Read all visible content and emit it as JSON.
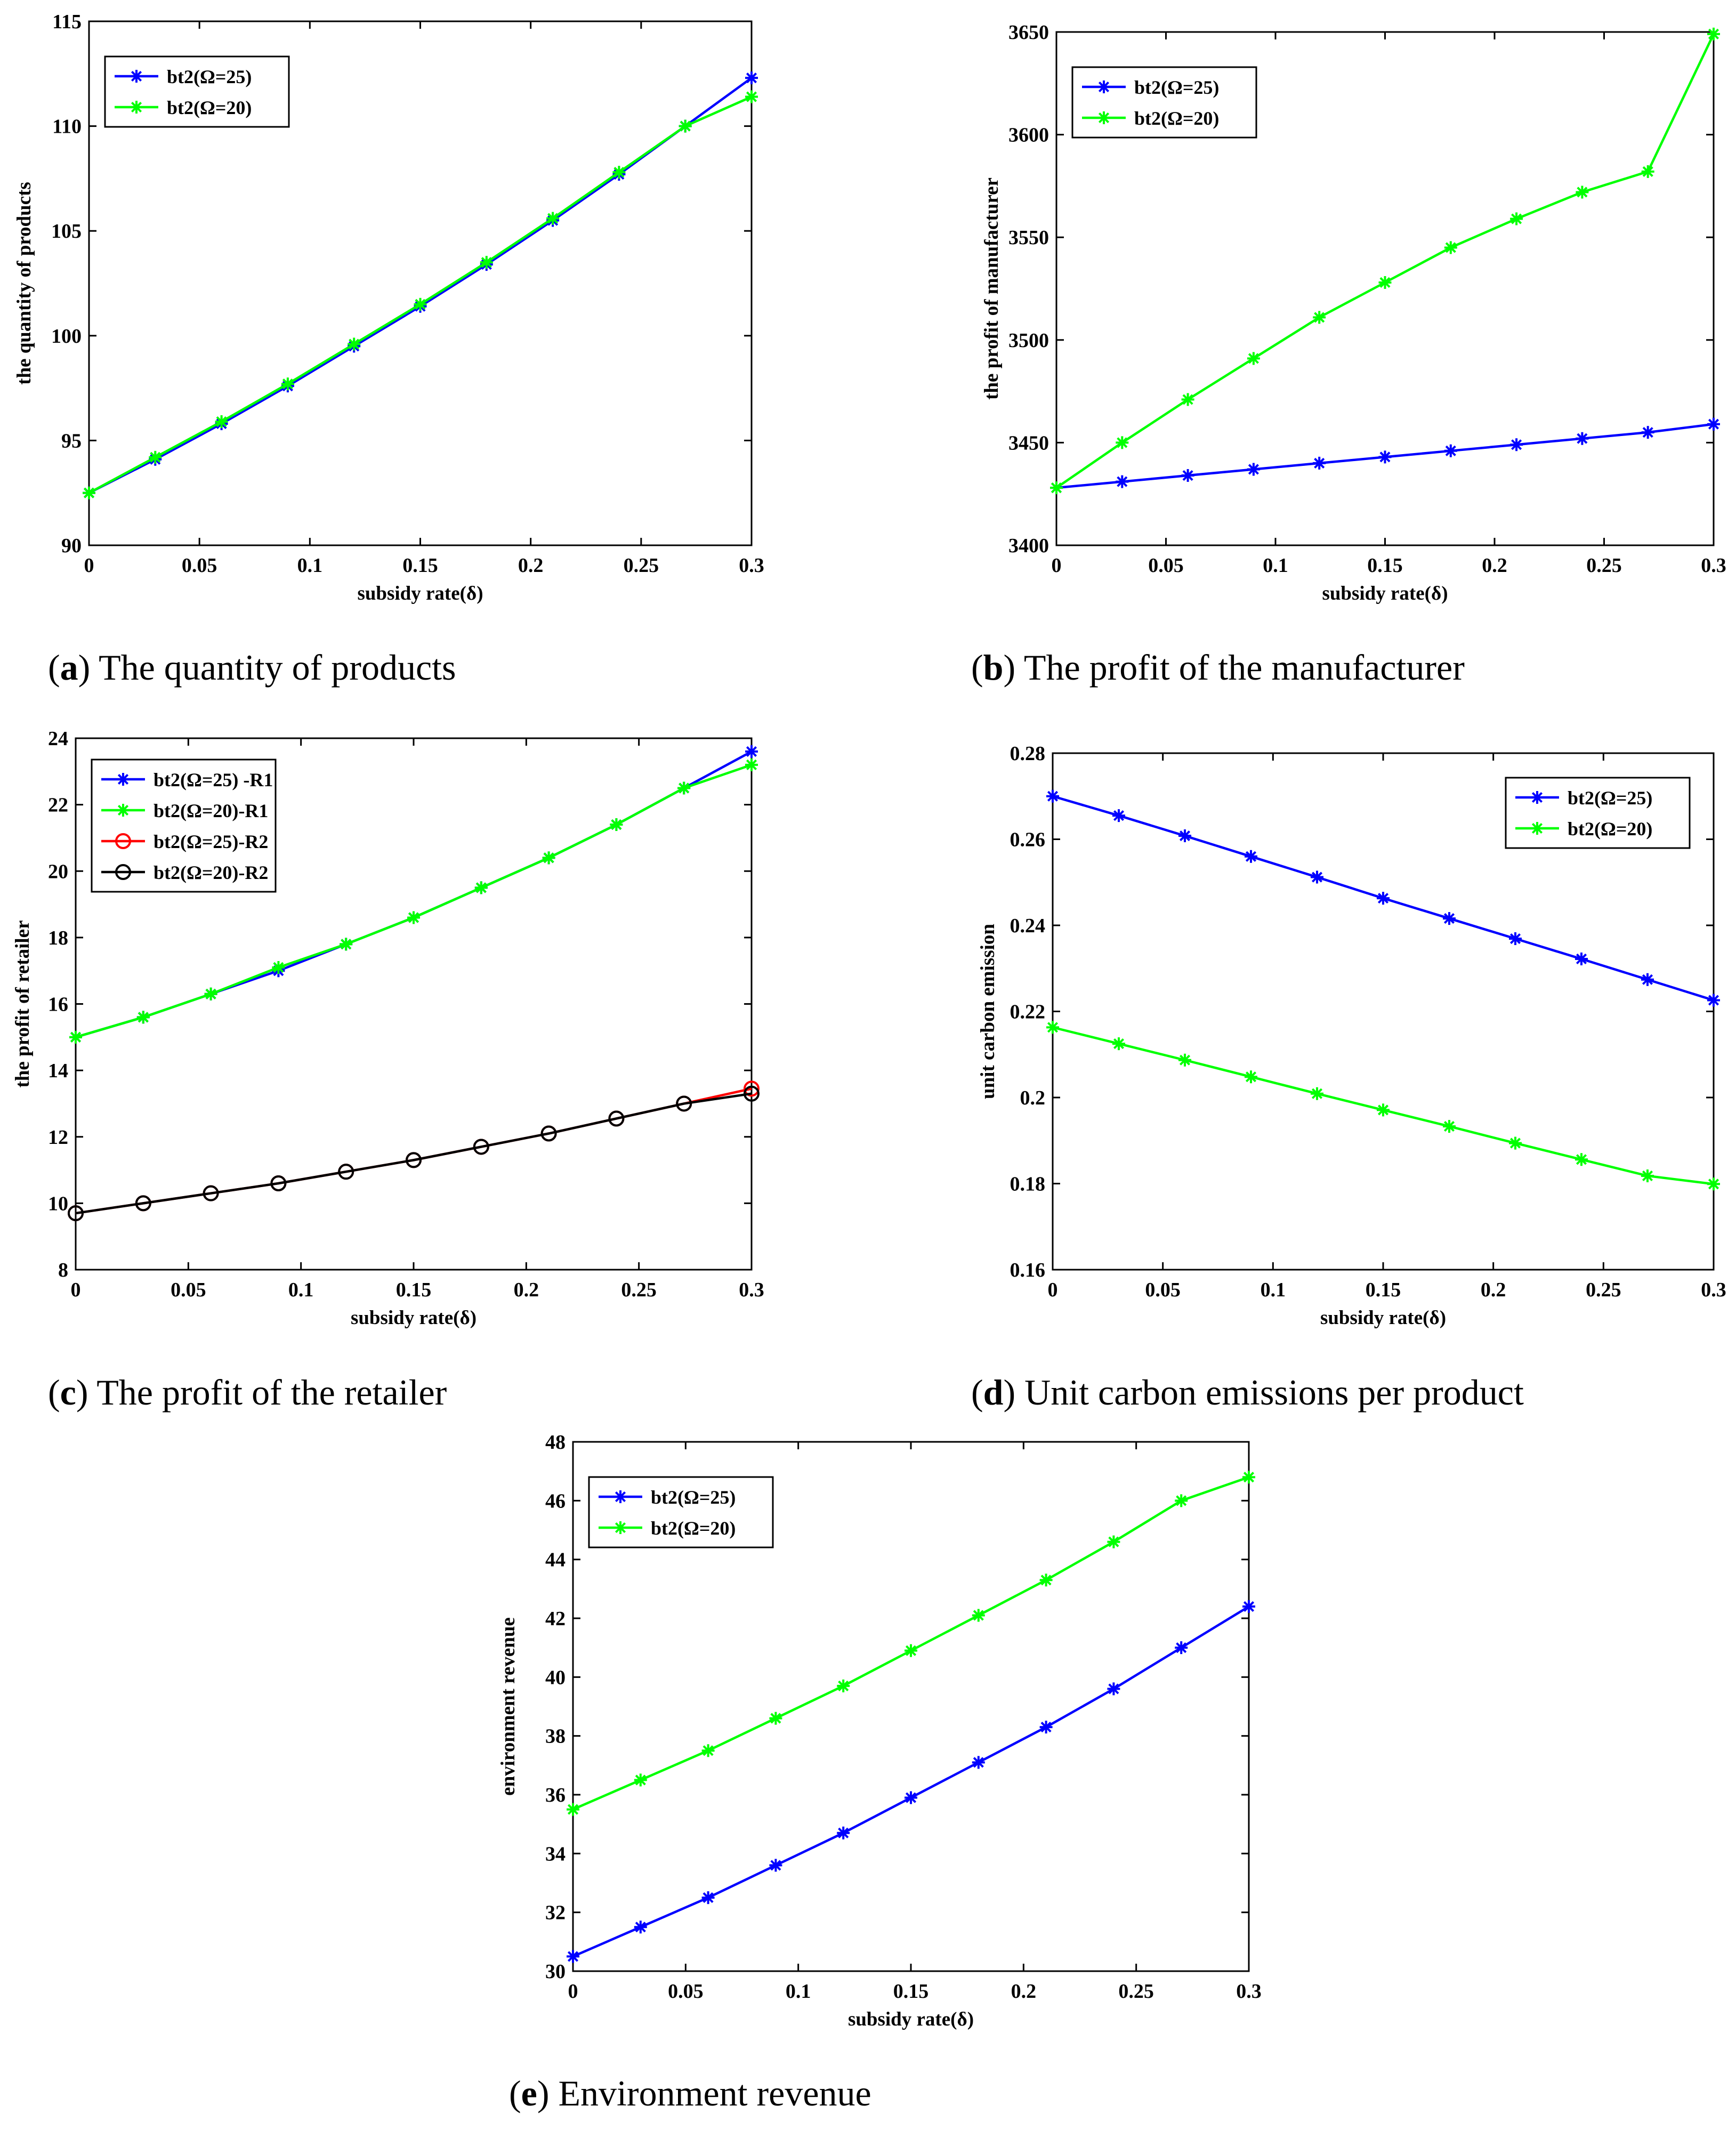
{
  "colors": {
    "blue": "#0000ff",
    "green": "#00ff00",
    "red": "#ff0000",
    "black": "#000000"
  },
  "chart_data": [
    {
      "id": "a",
      "type": "line",
      "caption_letter": "a",
      "caption_text": " The quantity of products",
      "xlabel": "subsidy rate(δ)",
      "ylabel": "the quantity of products",
      "x": [
        0,
        0.03,
        0.06,
        0.09,
        0.12,
        0.15,
        0.18,
        0.21,
        0.24,
        0.27,
        0.3
      ],
      "xlim": [
        0,
        0.3
      ],
      "xticks": [
        0,
        0.05,
        0.1,
        0.15,
        0.2,
        0.25,
        0.3
      ],
      "xtick_labels": [
        "0",
        "0.05",
        "0.1",
        "0.15",
        "0.2",
        "0.25",
        "0.3"
      ],
      "ylim": [
        90,
        115
      ],
      "yticks": [
        90,
        95,
        100,
        105,
        110,
        115
      ],
      "ytick_labels": [
        "90",
        "95",
        "100",
        "105",
        "110",
        "115"
      ],
      "legend_position": "top-left",
      "series": [
        {
          "name": "bt2(Ω=25)",
          "color": "blue",
          "marker": "star",
          "values": [
            92.5,
            94.1,
            95.8,
            97.6,
            99.5,
            101.4,
            103.4,
            105.5,
            107.7,
            110.0,
            112.3
          ]
        },
        {
          "name": "bt2(Ω=20)",
          "color": "green",
          "marker": "star",
          "values": [
            92.5,
            94.2,
            95.9,
            97.7,
            99.6,
            101.5,
            103.5,
            105.6,
            107.8,
            110.0,
            111.4
          ]
        }
      ]
    },
    {
      "id": "b",
      "type": "line",
      "caption_letter": "b",
      "caption_text": " The profit of the manufacturer",
      "xlabel": "subsidy rate(δ)",
      "ylabel": "the profit of manufacturer",
      "x": [
        0,
        0.03,
        0.06,
        0.09,
        0.12,
        0.15,
        0.18,
        0.21,
        0.24,
        0.27,
        0.3
      ],
      "xlim": [
        0,
        0.3
      ],
      "xticks": [
        0,
        0.05,
        0.1,
        0.15,
        0.2,
        0.25,
        0.3
      ],
      "xtick_labels": [
        "0",
        "0.05",
        "0.1",
        "0.15",
        "0.2",
        "0.25",
        "0.3"
      ],
      "ylim": [
        3400,
        3650
      ],
      "yticks": [
        3400,
        3450,
        3500,
        3550,
        3600,
        3650
      ],
      "ytick_labels": [
        "3400",
        "3450",
        "3500",
        "3550",
        "3600",
        "3650"
      ],
      "legend_position": "top-left",
      "series": [
        {
          "name": "bt2(Ω=25)",
          "color": "blue",
          "marker": "star",
          "values": [
            3428,
            3431,
            3434,
            3437,
            3440,
            3443,
            3446,
            3449,
            3452,
            3455,
            3459
          ]
        },
        {
          "name": "bt2(Ω=20)",
          "color": "green",
          "marker": "star",
          "values": [
            3428,
            3450,
            3471,
            3491,
            3511,
            3528,
            3545,
            3559,
            3572,
            3582,
            3649
          ]
        }
      ]
    },
    {
      "id": "c",
      "type": "line",
      "caption_letter": "c",
      "caption_text": " The profit of the retailer",
      "xlabel": "subsidy rate(δ)",
      "ylabel": "the profit of retailer",
      "x": [
        0,
        0.03,
        0.06,
        0.09,
        0.12,
        0.15,
        0.18,
        0.21,
        0.24,
        0.27,
        0.3
      ],
      "xlim": [
        0,
        0.3
      ],
      "xticks": [
        0,
        0.05,
        0.1,
        0.15,
        0.2,
        0.25,
        0.3
      ],
      "xtick_labels": [
        "0",
        "0.05",
        "0.1",
        "0.15",
        "0.2",
        "0.25",
        "0.3"
      ],
      "ylim": [
        8,
        24
      ],
      "yticks": [
        8,
        10,
        12,
        14,
        16,
        18,
        20,
        22,
        24
      ],
      "ytick_labels": [
        "8",
        "10",
        "12",
        "14",
        "16",
        "18",
        "20",
        "22",
        "24"
      ],
      "legend_position": "top-left",
      "series": [
        {
          "name": "bt2(Ω=25) -R1",
          "color": "blue",
          "marker": "star",
          "values": [
            15.0,
            15.6,
            16.3,
            17.0,
            17.8,
            18.6,
            19.5,
            20.4,
            21.4,
            22.5,
            23.6
          ]
        },
        {
          "name": "bt2(Ω=20)-R1",
          "color": "green",
          "marker": "star",
          "values": [
            15.0,
            15.6,
            16.3,
            17.1,
            17.8,
            18.6,
            19.5,
            20.4,
            21.4,
            22.5,
            23.2
          ]
        },
        {
          "name": "bt2(Ω=25)-R2",
          "color": "red",
          "marker": "circle",
          "values": [
            9.7,
            10.0,
            10.3,
            10.6,
            10.95,
            11.3,
            11.7,
            12.1,
            12.55,
            13.0,
            13.45
          ]
        },
        {
          "name": "bt2(Ω=20)-R2",
          "color": "black",
          "marker": "circle",
          "values": [
            9.7,
            10.0,
            10.3,
            10.6,
            10.95,
            11.3,
            11.7,
            12.1,
            12.55,
            13.0,
            13.3
          ]
        }
      ]
    },
    {
      "id": "d",
      "type": "line",
      "caption_letter": "d",
      "caption_text": " Unit carbon emissions per product",
      "xlabel": "subsidy rate(δ)",
      "ylabel": "unit carbon emission",
      "x": [
        0,
        0.03,
        0.06,
        0.09,
        0.12,
        0.15,
        0.18,
        0.21,
        0.24,
        0.27,
        0.3
      ],
      "xlim": [
        0,
        0.3
      ],
      "xticks": [
        0,
        0.05,
        0.1,
        0.15,
        0.2,
        0.25,
        0.3
      ],
      "xtick_labels": [
        "0",
        "0.05",
        "0.1",
        "0.15",
        "0.2",
        "0.25",
        "0.3"
      ],
      "ylim": [
        0.16,
        0.28
      ],
      "yticks": [
        0.16,
        0.18,
        0.2,
        0.22,
        0.24,
        0.26,
        0.28
      ],
      "ytick_labels": [
        "0.16",
        "0.18",
        "0.2",
        "0.22",
        "0.24",
        "0.26",
        "0.28"
      ],
      "legend_position": "top-right",
      "series": [
        {
          "name": "bt2(Ω=25)",
          "color": "blue",
          "marker": "star",
          "values": [
            0.27,
            0.2655,
            0.2608,
            0.256,
            0.2512,
            0.2463,
            0.2416,
            0.2369,
            0.2322,
            0.2274,
            0.2226
          ]
        },
        {
          "name": "bt2(Ω=20)",
          "color": "green",
          "marker": "star",
          "values": [
            0.2163,
            0.2125,
            0.2087,
            0.2048,
            0.2009,
            0.1971,
            0.1933,
            0.1894,
            0.1856,
            0.1818,
            0.1799
          ]
        }
      ]
    },
    {
      "id": "e",
      "type": "line",
      "caption_letter": "e",
      "caption_text": " Environment revenue",
      "xlabel": "subsidy rate(δ)",
      "ylabel": "environment revenue",
      "x": [
        0,
        0.03,
        0.06,
        0.09,
        0.12,
        0.15,
        0.18,
        0.21,
        0.24,
        0.27,
        0.3
      ],
      "xlim": [
        0,
        0.3
      ],
      "xticks": [
        0,
        0.05,
        0.1,
        0.15,
        0.2,
        0.25,
        0.3
      ],
      "xtick_labels": [
        "0",
        "0.05",
        "0.1",
        "0.15",
        "0.2",
        "0.25",
        "0.3"
      ],
      "ylim": [
        30,
        48
      ],
      "yticks": [
        30,
        32,
        34,
        36,
        38,
        40,
        42,
        44,
        46,
        48
      ],
      "ytick_labels": [
        "30",
        "32",
        "34",
        "36",
        "38",
        "40",
        "42",
        "44",
        "46",
        "48"
      ],
      "legend_position": "top-left",
      "series": [
        {
          "name": "bt2(Ω=25)",
          "color": "blue",
          "marker": "star",
          "values": [
            30.5,
            31.5,
            32.5,
            33.6,
            34.7,
            35.9,
            37.1,
            38.3,
            39.6,
            41.0,
            42.4
          ]
        },
        {
          "name": "bt2(Ω=20)",
          "color": "green",
          "marker": "star",
          "values": [
            35.5,
            36.5,
            37.5,
            38.6,
            39.7,
            40.9,
            42.1,
            43.3,
            44.6,
            46.0,
            46.8
          ]
        }
      ]
    }
  ]
}
